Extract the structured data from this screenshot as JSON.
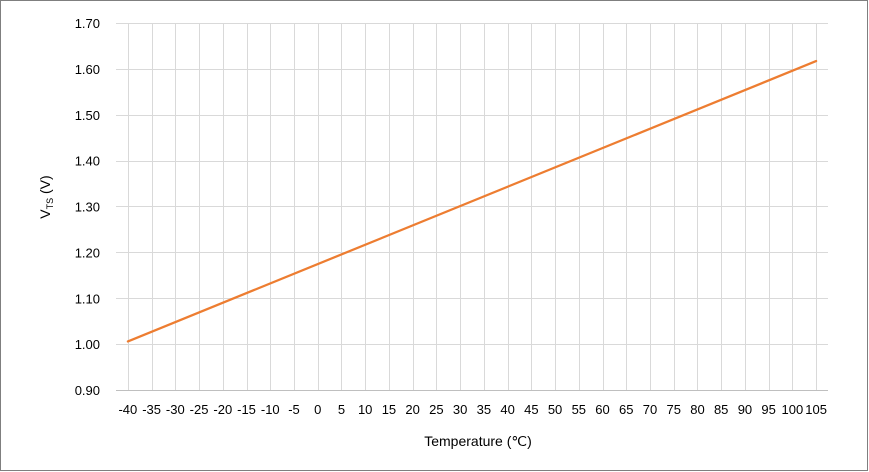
{
  "chart_data": {
    "type": "line",
    "xlabel": "Temperature (℃)",
    "ylabel": {
      "main": "V",
      "sub": "TS",
      "unit": " (V)"
    },
    "x": [
      -40,
      -35,
      -30,
      -25,
      -20,
      -15,
      -10,
      -5,
      0,
      5,
      10,
      15,
      20,
      25,
      30,
      35,
      40,
      45,
      50,
      55,
      60,
      65,
      70,
      75,
      80,
      85,
      90,
      95,
      100,
      105
    ],
    "x_tick_labels": [
      "-40",
      "-35",
      "-30",
      "-25",
      "-20",
      "-15",
      "-10",
      "-5",
      "0",
      "5",
      "10",
      "15",
      "20",
      "25",
      "30",
      "35",
      "40",
      "45",
      "50",
      "55",
      "60",
      "65",
      "70",
      "75",
      "80",
      "85",
      "90",
      "95",
      "100",
      "105"
    ],
    "y_tick_labels": [
      "0.90",
      "1.00",
      "1.10",
      "1.20",
      "1.30",
      "1.40",
      "1.50",
      "1.60",
      "1.70"
    ],
    "ylim": [
      0.9,
      1.7
    ],
    "xlim": [
      -40,
      105
    ],
    "grid": true,
    "series": [
      {
        "color": "#ED7D31",
        "x": [
          -40,
          105
        ],
        "y": [
          1.006,
          1.617
        ]
      }
    ]
  }
}
